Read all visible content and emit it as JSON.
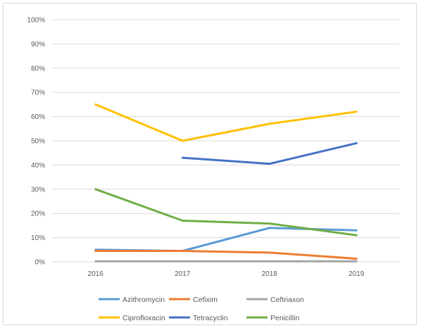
{
  "chart_data": {
    "type": "line",
    "title": "",
    "xlabel": "",
    "ylabel": "",
    "categories": [
      "2016",
      "2017",
      "2018",
      "2019"
    ],
    "ylim": [
      0,
      1
    ],
    "y_ticks": [
      "0%",
      "10%",
      "20%",
      "30%",
      "40%",
      "50%",
      "60%",
      "70%",
      "80%",
      "90%",
      "100%"
    ],
    "grid": true,
    "legend_position": "bottom",
    "series": [
      {
        "name": "Azithromycin",
        "color": "#5b9bd5",
        "values": [
          0.05,
          0.045,
          0.14,
          0.13
        ]
      },
      {
        "name": "Cefixim",
        "color": "#ed7d31",
        "values": [
          0.045,
          0.045,
          0.038,
          0.013
        ]
      },
      {
        "name": "Ceftriaxon",
        "color": "#a5a5a5",
        "values": [
          0.002,
          0.002,
          0.002,
          0.002
        ]
      },
      {
        "name": "Ciprofloxacin",
        "color": "#ffc000",
        "values": [
          0.65,
          0.5,
          0.57,
          0.62
        ]
      },
      {
        "name": "Tetracyclin",
        "color": "#4472c4",
        "values": [
          null,
          0.43,
          0.405,
          0.49
        ]
      },
      {
        "name": "Penicillin",
        "color": "#70ad47",
        "values": [
          0.3,
          0.17,
          0.158,
          0.11
        ]
      }
    ]
  }
}
